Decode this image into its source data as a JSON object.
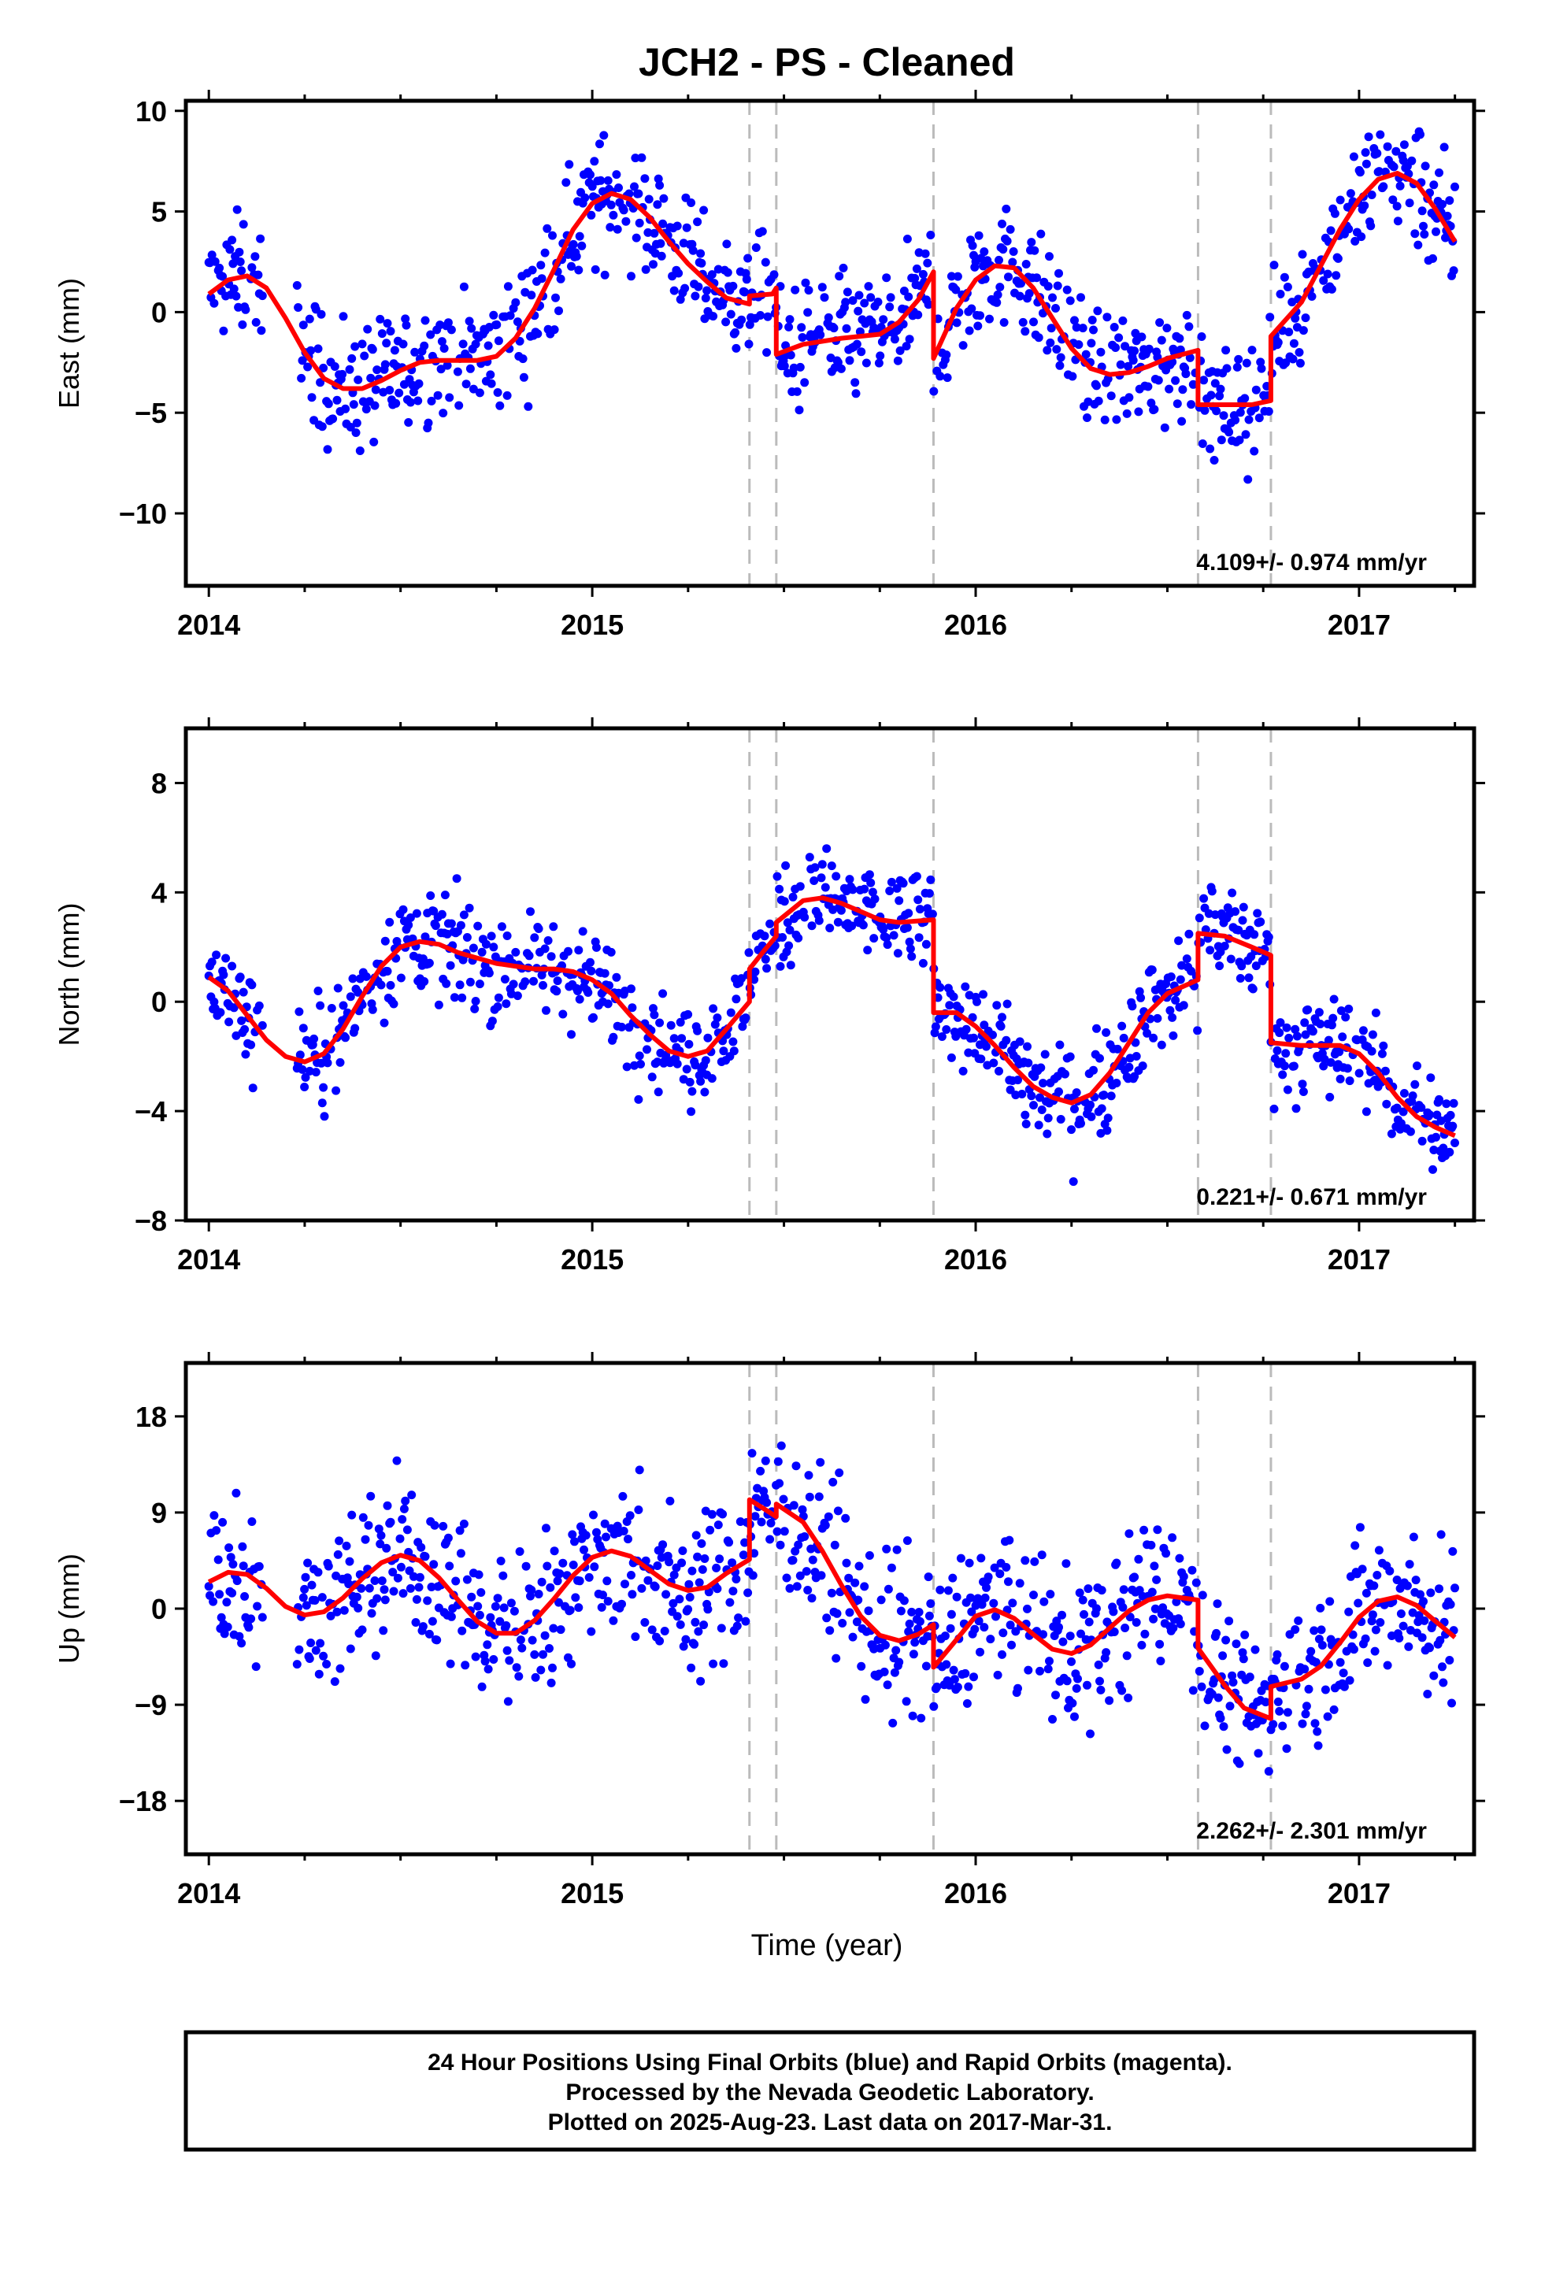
{
  "title": "JCH2  - PS - Cleaned",
  "footer": {
    "line1": "24 Hour Positions Using Final Orbits (blue) and Rapid Orbits (magenta).",
    "line2": "Processed by the Nevada Geodetic Laboratory.",
    "line3": "Plotted on 2025-Aug-23. Last data on 2017-Mar-31."
  },
  "xlabel": "Time (year)",
  "colors": {
    "points": "#0000ff",
    "model": "#ff0000",
    "steps": "#bbbbbb"
  },
  "chart_data": [
    {
      "type": "scatter",
      "component": "East",
      "ylabel": "East (mm)",
      "xlim": [
        2013.94,
        2017.3
      ],
      "ylim": [
        -13.6,
        10.5
      ],
      "xticks": [
        2014,
        2015,
        2016,
        2017
      ],
      "xtick_labels": [
        "2014",
        "2015",
        "2016",
        "2017"
      ],
      "yticks": [
        10,
        5,
        0,
        -5,
        -10
      ],
      "ytick_labels": [
        "10",
        "5",
        "0",
        "−5",
        "−10"
      ],
      "rate": "4.109+/- 0.974 mm/yr",
      "steps": [
        2015.41,
        2015.48,
        2015.89,
        2016.58,
        2016.77
      ],
      "model": [
        [
          2014.0,
          0.9
        ],
        [
          2014.05,
          1.6
        ],
        [
          2014.1,
          1.8
        ],
        [
          2014.15,
          1.2
        ],
        [
          2014.2,
          -0.3
        ],
        [
          2014.25,
          -2.0
        ],
        [
          2014.3,
          -3.3
        ],
        [
          2014.35,
          -3.8
        ],
        [
          2014.4,
          -3.8
        ],
        [
          2014.45,
          -3.4
        ],
        [
          2014.5,
          -2.9
        ],
        [
          2014.55,
          -2.5
        ],
        [
          2014.6,
          -2.4
        ],
        [
          2014.65,
          -2.4
        ],
        [
          2014.7,
          -2.4
        ],
        [
          2014.75,
          -2.2
        ],
        [
          2014.8,
          -1.3
        ],
        [
          2014.85,
          0.2
        ],
        [
          2014.9,
          2.1
        ],
        [
          2014.95,
          4.1
        ],
        [
          2015.0,
          5.4
        ],
        [
          2015.05,
          5.9
        ],
        [
          2015.1,
          5.6
        ],
        [
          2015.15,
          4.7
        ],
        [
          2015.2,
          3.5
        ],
        [
          2015.25,
          2.4
        ],
        [
          2015.3,
          1.5
        ],
        [
          2015.35,
          0.7
        ],
        [
          2015.41,
          0.4
        ],
        [
          2015.41,
          0.8
        ],
        [
          2015.47,
          0.9
        ],
        [
          2015.48,
          1.2
        ],
        [
          2015.48,
          -2.1
        ],
        [
          2015.55,
          -1.6
        ],
        [
          2015.65,
          -1.3
        ],
        [
          2015.75,
          -1.1
        ],
        [
          2015.8,
          -0.5
        ],
        [
          2015.85,
          0.6
        ],
        [
          2015.89,
          2.0
        ],
        [
          2015.89,
          -2.3
        ],
        [
          2015.95,
          0.2
        ],
        [
          2016.0,
          1.6
        ],
        [
          2016.05,
          2.3
        ],
        [
          2016.1,
          2.2
        ],
        [
          2016.15,
          1.2
        ],
        [
          2016.2,
          -0.3
        ],
        [
          2016.25,
          -1.8
        ],
        [
          2016.3,
          -2.8
        ],
        [
          2016.35,
          -3.1
        ],
        [
          2016.4,
          -3.0
        ],
        [
          2016.45,
          -2.7
        ],
        [
          2016.5,
          -2.3
        ],
        [
          2016.58,
          -1.9
        ],
        [
          2016.58,
          -4.6
        ],
        [
          2016.65,
          -4.6
        ],
        [
          2016.72,
          -4.6
        ],
        [
          2016.77,
          -4.4
        ],
        [
          2016.77,
          -1.2
        ],
        [
          2016.85,
          0.5
        ],
        [
          2016.9,
          2.3
        ],
        [
          2016.95,
          4.1
        ],
        [
          2017.0,
          5.6
        ],
        [
          2017.05,
          6.6
        ],
        [
          2017.1,
          6.9
        ],
        [
          2017.15,
          6.4
        ],
        [
          2017.2,
          5.1
        ],
        [
          2017.25,
          3.5
        ]
      ]
    },
    {
      "type": "scatter",
      "component": "North",
      "ylabel": "North (mm)",
      "xlim": [
        2013.94,
        2017.3
      ],
      "ylim": [
        -8,
        10
      ],
      "xticks": [
        2014,
        2015,
        2016,
        2017
      ],
      "xtick_labels": [
        "2014",
        "2015",
        "2016",
        "2017"
      ],
      "yticks": [
        8,
        4,
        0,
        -4,
        -8
      ],
      "ytick_labels": [
        "8",
        "4",
        "0",
        "−4",
        "−8"
      ],
      "rate": "0.221+/- 0.671 mm/yr",
      "steps": [
        2015.41,
        2015.48,
        2015.89,
        2016.58,
        2016.77
      ],
      "model": [
        [
          2014.0,
          0.9
        ],
        [
          2014.05,
          0.4
        ],
        [
          2014.1,
          -0.5
        ],
        [
          2014.15,
          -1.4
        ],
        [
          2014.2,
          -2.0
        ],
        [
          2014.25,
          -2.2
        ],
        [
          2014.3,
          -1.9
        ],
        [
          2014.35,
          -1.0
        ],
        [
          2014.4,
          0.2
        ],
        [
          2014.45,
          1.3
        ],
        [
          2014.5,
          2.0
        ],
        [
          2014.55,
          2.2
        ],
        [
          2014.6,
          2.1
        ],
        [
          2014.65,
          1.8
        ],
        [
          2014.7,
          1.6
        ],
        [
          2014.75,
          1.4
        ],
        [
          2014.8,
          1.3
        ],
        [
          2014.85,
          1.2
        ],
        [
          2014.9,
          1.2
        ],
        [
          2014.95,
          1.1
        ],
        [
          2015.0,
          0.8
        ],
        [
          2015.05,
          0.3
        ],
        [
          2015.1,
          -0.5
        ],
        [
          2015.15,
          -1.2
        ],
        [
          2015.2,
          -1.8
        ],
        [
          2015.25,
          -2.0
        ],
        [
          2015.3,
          -1.8
        ],
        [
          2015.35,
          -1.0
        ],
        [
          2015.41,
          0.0
        ],
        [
          2015.41,
          1.2
        ],
        [
          2015.45,
          1.9
        ],
        [
          2015.48,
          2.4
        ],
        [
          2015.48,
          2.9
        ],
        [
          2015.55,
          3.7
        ],
        [
          2015.6,
          3.8
        ],
        [
          2015.65,
          3.6
        ],
        [
          2015.7,
          3.3
        ],
        [
          2015.75,
          3.0
        ],
        [
          2015.8,
          2.9
        ],
        [
          2015.89,
          3.0
        ],
        [
          2015.89,
          -0.4
        ],
        [
          2015.95,
          -0.4
        ],
        [
          2016.0,
          -0.9
        ],
        [
          2016.05,
          -1.6
        ],
        [
          2016.1,
          -2.4
        ],
        [
          2016.15,
          -3.1
        ],
        [
          2016.2,
          -3.5
        ],
        [
          2016.25,
          -3.7
        ],
        [
          2016.3,
          -3.4
        ],
        [
          2016.35,
          -2.6
        ],
        [
          2016.4,
          -1.5
        ],
        [
          2016.45,
          -0.4
        ],
        [
          2016.5,
          0.3
        ],
        [
          2016.58,
          0.8
        ],
        [
          2016.58,
          2.5
        ],
        [
          2016.65,
          2.4
        ],
        [
          2016.72,
          2.0
        ],
        [
          2016.77,
          1.7
        ],
        [
          2016.77,
          -1.5
        ],
        [
          2016.85,
          -1.6
        ],
        [
          2016.95,
          -1.6
        ],
        [
          2017.0,
          -1.9
        ],
        [
          2017.05,
          -2.6
        ],
        [
          2017.1,
          -3.5
        ],
        [
          2017.15,
          -4.2
        ],
        [
          2017.2,
          -4.6
        ],
        [
          2017.25,
          -4.9
        ]
      ]
    },
    {
      "type": "scatter",
      "component": "Up",
      "ylabel": "Up (mm)",
      "xlim": [
        2013.94,
        2017.3
      ],
      "ylim": [
        -23,
        23
      ],
      "xticks": [
        2014,
        2015,
        2016,
        2017
      ],
      "xtick_labels": [
        "2014",
        "2015",
        "2016",
        "2017"
      ],
      "yticks": [
        18,
        9,
        0,
        -9,
        -18
      ],
      "ytick_labels": [
        "18",
        "9",
        "0",
        "−9",
        "−18"
      ],
      "rate": "2.262+/- 2.301 mm/yr",
      "steps": [
        2015.41,
        2015.48,
        2015.89,
        2016.58,
        2016.77
      ],
      "model": [
        [
          2014.0,
          2.5
        ],
        [
          2014.05,
          3.4
        ],
        [
          2014.1,
          3.2
        ],
        [
          2014.15,
          1.9
        ],
        [
          2014.2,
          0.2
        ],
        [
          2014.25,
          -0.6
        ],
        [
          2014.3,
          -0.3
        ],
        [
          2014.35,
          1.0
        ],
        [
          2014.4,
          2.8
        ],
        [
          2014.45,
          4.3
        ],
        [
          2014.5,
          5.0
        ],
        [
          2014.55,
          4.5
        ],
        [
          2014.6,
          2.9
        ],
        [
          2014.65,
          0.8
        ],
        [
          2014.7,
          -1.2
        ],
        [
          2014.75,
          -2.3
        ],
        [
          2014.8,
          -2.3
        ],
        [
          2014.85,
          -1.1
        ],
        [
          2014.9,
          0.9
        ],
        [
          2014.95,
          3.1
        ],
        [
          2015.0,
          4.8
        ],
        [
          2015.05,
          5.4
        ],
        [
          2015.1,
          4.9
        ],
        [
          2015.15,
          3.6
        ],
        [
          2015.2,
          2.3
        ],
        [
          2015.25,
          1.7
        ],
        [
          2015.3,
          2.0
        ],
        [
          2015.35,
          3.3
        ],
        [
          2015.41,
          4.6
        ],
        [
          2015.41,
          10.2
        ],
        [
          2015.45,
          9.3
        ],
        [
          2015.48,
          8.6
        ],
        [
          2015.48,
          9.8
        ],
        [
          2015.55,
          8.1
        ],
        [
          2015.6,
          5.4
        ],
        [
          2015.65,
          2.2
        ],
        [
          2015.7,
          -0.7
        ],
        [
          2015.75,
          -2.5
        ],
        [
          2015.8,
          -3.0
        ],
        [
          2015.85,
          -2.4
        ],
        [
          2015.89,
          -1.5
        ],
        [
          2015.89,
          -5.5
        ],
        [
          2015.95,
          -2.9
        ],
        [
          2016.0,
          -0.7
        ],
        [
          2016.05,
          -0.1
        ],
        [
          2016.1,
          -0.9
        ],
        [
          2016.15,
          -2.4
        ],
        [
          2016.2,
          -3.8
        ],
        [
          2016.25,
          -4.2
        ],
        [
          2016.3,
          -3.4
        ],
        [
          2016.35,
          -1.8
        ],
        [
          2016.4,
          -0.2
        ],
        [
          2016.45,
          0.8
        ],
        [
          2016.5,
          1.2
        ],
        [
          2016.58,
          0.8
        ],
        [
          2016.58,
          -3.7
        ],
        [
          2016.65,
          -7.2
        ],
        [
          2016.7,
          -9.3
        ],
        [
          2016.77,
          -10.3
        ],
        [
          2016.77,
          -7.3
        ],
        [
          2016.85,
          -6.6
        ],
        [
          2016.9,
          -5.4
        ],
        [
          2016.95,
          -3.2
        ],
        [
          2017.0,
          -0.8
        ],
        [
          2017.05,
          0.7
        ],
        [
          2017.1,
          1.1
        ],
        [
          2017.15,
          0.3
        ],
        [
          2017.2,
          -1.2
        ],
        [
          2017.25,
          -2.7
        ]
      ]
    }
  ]
}
